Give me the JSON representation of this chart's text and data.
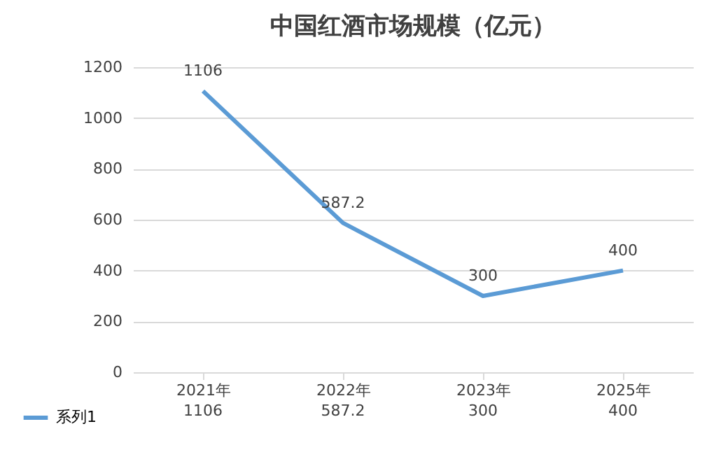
{
  "chart_data": {
    "type": "line",
    "title": "中国红酒市场规模（亿元）",
    "categories": [
      "2021年",
      "2022年",
      "2023年",
      "2025年"
    ],
    "series": [
      {
        "name": "系列1",
        "color": "#5b9bd5",
        "values": [
          1106,
          587.2,
          300,
          400
        ]
      }
    ],
    "ylim": [
      0,
      1200
    ],
    "yticks": [
      0,
      200,
      400,
      600,
      800,
      1000,
      1200
    ],
    "grid": "y",
    "data_labels": true,
    "legend": "bottom left",
    "marker": "none",
    "line_style": "solid",
    "annotations": [
      {
        "text": "1106",
        "x": "2021年",
        "y": 1106
      },
      {
        "text": "587.2",
        "x": "2022年",
        "y": 587.2
      },
      {
        "text": "300",
        "x": "2023年",
        "y": 300
      },
      {
        "text": "400",
        "x": "2025年",
        "y": 400
      }
    ]
  }
}
